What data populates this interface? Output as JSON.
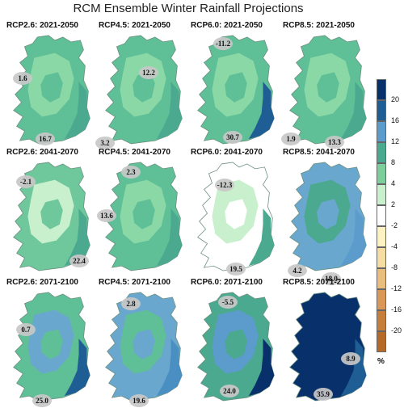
{
  "title": "RCM Ensemble Winter Rainfall Projections",
  "colorbar": {
    "unit": "%",
    "ticks": [
      "20",
      "16",
      "12",
      "8",
      "4",
      "2",
      "-2",
      "-4",
      "-8",
      "-12",
      "-16",
      "-20"
    ],
    "colors": [
      "#08306b",
      "#1f5e94",
      "#5b9ccc",
      "#4aa98e",
      "#7ccf9a",
      "#c8f0cc",
      "#ffffff",
      "#fdf3c2",
      "#f5dca0",
      "#e9bd7c",
      "#d99858",
      "#c57e3c",
      "#b56a2a"
    ]
  },
  "panels": [
    {
      "title": "RCP2.6: 2021-2050",
      "callouts": [
        "1.6",
        "16.7"
      ],
      "palette": [
        "#5fbf96",
        "#8ad8a6",
        "#4aa98e"
      ]
    },
    {
      "title": "RCP4.5: 2021-2050",
      "callouts": [
        "12.2",
        "3.2"
      ],
      "palette": [
        "#5fbf96",
        "#8ad8a6",
        "#4aa98e"
      ]
    },
    {
      "title": "RCP6.0: 2021-2050",
      "callouts": [
        "-11.2",
        "30.7"
      ],
      "palette": [
        "#5fbf96",
        "#8ad8a6",
        "#1f5e94"
      ]
    },
    {
      "title": "RCP8.5: 2021-2050",
      "callouts": [
        "1.9",
        "13.3"
      ],
      "palette": [
        "#5fbf96",
        "#8ad8a6",
        "#4aa98e"
      ]
    },
    {
      "title": "RCP2.6: 2041-2070",
      "callouts": [
        "-2.1",
        "22.4"
      ],
      "palette": [
        "#6fc79c",
        "#c8f0cc",
        "#4aa98e"
      ]
    },
    {
      "title": "RCP4.5: 2041-2070",
      "callouts": [
        "2.3",
        "13.6"
      ],
      "palette": [
        "#5fbf96",
        "#8ad8a6",
        "#4aa98e"
      ]
    },
    {
      "title": "RCP6.0: 2041-2070",
      "callouts": [
        "-12.3",
        "19.5"
      ],
      "palette": [
        "#ffffff",
        "#c8f0cc",
        "#4aa98e"
      ]
    },
    {
      "title": "RCP8.5: 2041-2070",
      "callouts": [
        "4.2",
        "18.0"
      ],
      "palette": [
        "#6aa7cf",
        "#4aa98e",
        "#5b9ccc"
      ]
    },
    {
      "title": "RCP2.6: 2071-2100",
      "callouts": [
        "0.7",
        "25.0"
      ],
      "palette": [
        "#5fbf96",
        "#6aa7cf",
        "#1f5e94"
      ]
    },
    {
      "title": "RCP4.5: 2071-2100",
      "callouts": [
        "2.8",
        "19.6"
      ],
      "palette": [
        "#6aa7cf",
        "#5fbf96",
        "#4a8fc2"
      ]
    },
    {
      "title": "RCP6.0: 2071-2100",
      "callouts": [
        "-5.5",
        "24.0"
      ],
      "palette": [
        "#4aa98e",
        "#5b9ccc",
        "#08306b"
      ]
    },
    {
      "title": "RCP8.5: 2071-2100",
      "callouts": [
        "8.9",
        "35.9"
      ],
      "palette": [
        "#08306b",
        "#08306b",
        "#1f5e94"
      ]
    }
  ]
}
